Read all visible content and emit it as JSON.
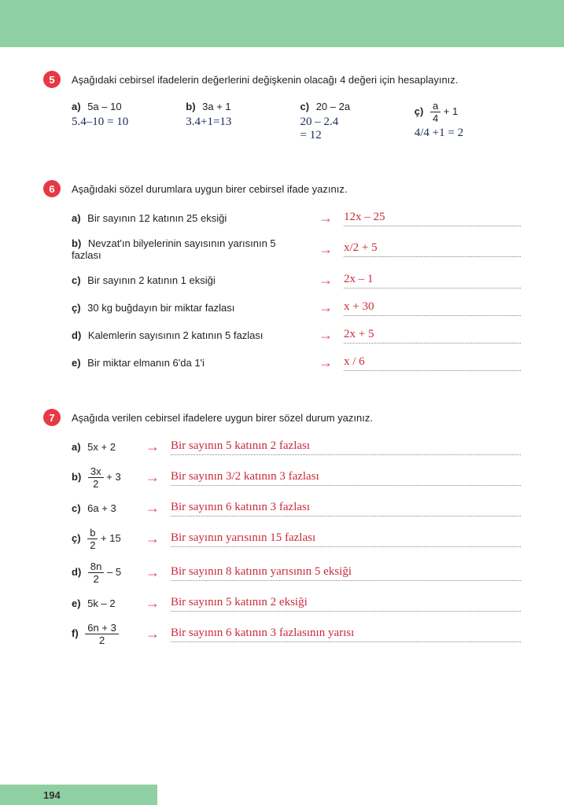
{
  "page_number": "194",
  "header_color": "#8fd0a3",
  "badge_color": "#e63946",
  "arrow_color": "#e6397a",
  "handwriting_color_blue": "#1a2a5a",
  "handwriting_color_red": "#c92a3a",
  "q5": {
    "num": "5",
    "prompt": "Aşağıdaki cebirsel ifadelerin değerlerini değişkenin olacağı 4 değeri için hesaplayınız.",
    "items": [
      {
        "l": "a)",
        "expr": "5a – 10",
        "work": "5.4–10 = 10"
      },
      {
        "l": "b)",
        "expr": "3a + 1",
        "work": "3.4+1=13"
      },
      {
        "l": "c)",
        "expr": "20 – 2a",
        "work": "20 – 2.4\n= 12"
      },
      {
        "l": "ç)",
        "frac_n": "a",
        "frac_d": "4",
        "post": " + 1",
        "work": "4/4 +1 = 2"
      }
    ]
  },
  "q6": {
    "num": "6",
    "prompt": "Aşağıdaki sözel durumlara uygun birer cebirsel ifade yazınız.",
    "items": [
      {
        "l": "a)",
        "t": "Bir sayının 12 katının 25 eksiği",
        "ans": "12x – 25"
      },
      {
        "l": "b)",
        "t": "Nevzat'ın bilyelerinin sayısının yarısının 5 fazlası",
        "ans": "x/2 + 5"
      },
      {
        "l": "c)",
        "t": "Bir sayının 2 katının 1 eksiği",
        "ans": "2x – 1"
      },
      {
        "l": "ç)",
        "t": "30 kg buğdayın bir miktar fazlası",
        "ans": "x + 30"
      },
      {
        "l": "d)",
        "t": "Kalemlerin sayısının 2 katının 5 fazlası",
        "ans": "2x + 5"
      },
      {
        "l": "e)",
        "t": "Bir miktar elmanın 6'da 1'i",
        "ans": "x / 6"
      }
    ]
  },
  "q7": {
    "num": "7",
    "prompt": "Aşağıda verilen cebirsel ifadelere uygun birer sözel durum yazınız.",
    "items": [
      {
        "l": "a)",
        "expr": "5x + 2",
        "ans": "Bir sayının 5 katının 2 fazlası"
      },
      {
        "l": "b)",
        "frac_n": "3x",
        "frac_d": "2",
        "post": " + 3",
        "ans": "Bir sayının 3/2 katının 3 fazlası"
      },
      {
        "l": "c)",
        "expr": "6a + 3",
        "ans": "Bir sayının 6 katının 3 fazlası"
      },
      {
        "l": "ç)",
        "frac_n": "b",
        "frac_d": "2",
        "post": " + 15",
        "ans": "Bir sayının yarısının 15 fazlası"
      },
      {
        "l": "d)",
        "frac_n": "8n",
        "frac_d": "2",
        "post": " – 5",
        "ans": "Bir sayının 8 katının yarısının 5 eksiği"
      },
      {
        "l": "e)",
        "expr": "5k – 2",
        "ans": "Bir sayının 5 katının 2 eksiği"
      },
      {
        "l": "f)",
        "frac_n": "6n + 3",
        "frac_d": "2",
        "post": "",
        "ans": "Bir sayının 6 katının 3 fazlasının yarısı"
      }
    ]
  }
}
